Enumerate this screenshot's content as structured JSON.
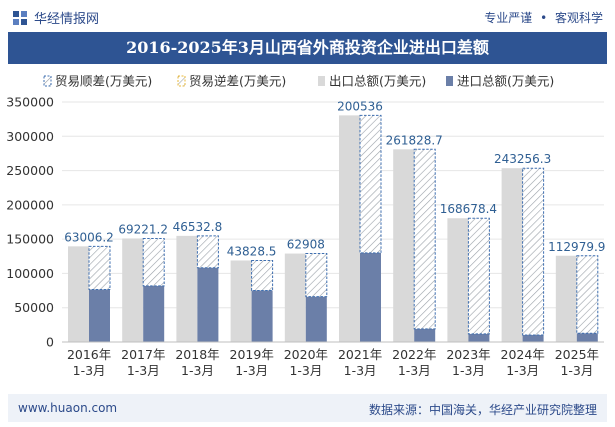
{
  "header": {
    "site_name": "华经情报网",
    "tagline_left": "专业严谨",
    "tagline_sep": "•",
    "tagline_right": "客观科学"
  },
  "title": "2016-2025年3月山西省外商投资企业进出口差额",
  "footer": {
    "url": "www.huaon.com",
    "source": "数据来源：中国海关，华经产业研究院整理"
  },
  "colors": {
    "export": "#d9d9d9",
    "import": "#6b7fa8",
    "surplus_stroke": "#3f6fb0",
    "deficit_stroke": "#e8b83a",
    "label": "#2f5f93",
    "title_bg": "#2e5493"
  },
  "chart_data": {
    "type": "bar",
    "title": "2016-2025年3月山西省外商投资企业进出口差额",
    "categories": [
      "2016年\n1-3月",
      "2017年\n1-3月",
      "2018年\n1-3月",
      "2019年\n1-3月",
      "2020年\n1-3月",
      "2021年\n1-3月",
      "2022年\n1-3月",
      "2023年\n1-3月",
      "2024年\n1-3月",
      "2025年\n1-3月"
    ],
    "legend": [
      "贸易顺差(万美元)",
      "贸易逆差(万美元)",
      "出口总额(万美元)",
      "进口总额(万美元)"
    ],
    "series": [
      {
        "name": "出口总额(万美元)",
        "values": [
          139500,
          151000,
          154800,
          118900,
          129000,
          330500,
          281000,
          180500,
          253500,
          125800
        ]
      },
      {
        "name": "进口总额(万美元)",
        "values": [
          76500,
          81800,
          108300,
          75100,
          66100,
          130000,
          19200,
          11800,
          10200,
          12800
        ]
      },
      {
        "name": "贸易顺差(万美元)",
        "values": [
          63006.2,
          69221.2,
          46532.8,
          43828.5,
          62908,
          200536,
          261828.7,
          168678.4,
          243256.3,
          112979.9
        ]
      }
    ],
    "data_labels": [
      "63006.2",
      "69221.2",
      "46532.8",
      "43828.5",
      "62908",
      "200536",
      "261828.7",
      "168678.4",
      "243256.3",
      "112979.9"
    ],
    "yticks": [
      "0",
      "50000",
      "100000",
      "150000",
      "200000",
      "250000",
      "300000",
      "350000"
    ],
    "ylim": [
      0,
      350000
    ],
    "xlabel": "",
    "ylabel": ""
  }
}
